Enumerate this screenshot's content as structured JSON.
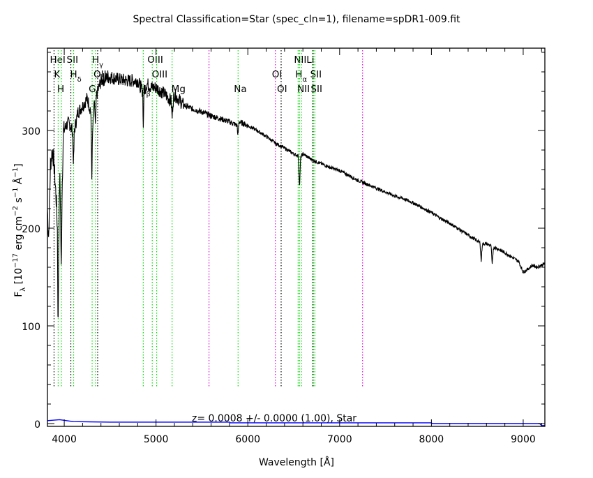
{
  "chart_data": {
    "type": "line",
    "title": "Spectral Classification=Star (spec_cln=1), filename=spDR1-009.fit",
    "xlabel": "Wavelength [Å]",
    "ylabel": {
      "main": "F",
      "sub": "λ",
      "rest": " [10",
      "e1": "−17",
      "mid": " erg cm",
      "e2": "−2",
      "mid2": " s",
      "e3": "−1",
      "end": " Å",
      "e4": "−1",
      "close": "]"
    },
    "xlim": [
      3817,
      9236
    ],
    "ylim": [
      0,
      384
    ],
    "xticks": [
      4000,
      5000,
      6000,
      7000,
      8000,
      9000
    ],
    "xtick_labels": [
      "4000",
      "5000",
      "6000",
      "7000",
      "8000",
      "9000"
    ],
    "yticks": [
      0,
      100,
      200,
      300
    ],
    "ytick_labels": [
      "0",
      "100",
      "200",
      "300"
    ],
    "annotation": "z= 0.0008 +/- 0.0000 (1.00), Star",
    "series": [
      {
        "name": "flux",
        "color": "#000000",
        "points": [
          [
            3817,
            219
          ],
          [
            3830,
            190
          ],
          [
            3850,
            265
          ],
          [
            3870,
            280
          ],
          [
            3885,
            270
          ],
          [
            3900,
            248
          ],
          [
            3915,
            226
          ],
          [
            3925,
            200
          ],
          [
            3933,
            90
          ],
          [
            3940,
            180
          ],
          [
            3950,
            255
          ],
          [
            3960,
            220
          ],
          [
            3968,
            148
          ],
          [
            3975,
            230
          ],
          [
            3990,
            298
          ],
          [
            4020,
            305
          ],
          [
            4050,
            308
          ],
          [
            4090,
            300
          ],
          [
            4101,
            265
          ],
          [
            4110,
            300
          ],
          [
            4150,
            319
          ],
          [
            4200,
            325
          ],
          [
            4250,
            333
          ],
          [
            4290,
            320
          ],
          [
            4300,
            251
          ],
          [
            4310,
            300
          ],
          [
            4330,
            330
          ],
          [
            4340,
            300
          ],
          [
            4350,
            335
          ],
          [
            4400,
            351
          ],
          [
            4500,
            355
          ],
          [
            4600,
            352
          ],
          [
            4700,
            351
          ],
          [
            4800,
            351
          ],
          [
            4855,
            340
          ],
          [
            4861,
            301
          ],
          [
            4868,
            340
          ],
          [
            4900,
            348
          ],
          [
            4950,
            344
          ],
          [
            5000,
            344
          ],
          [
            5100,
            337
          ],
          [
            5165,
            330
          ],
          [
            5175,
            312
          ],
          [
            5185,
            330
          ],
          [
            5200,
            337
          ],
          [
            5300,
            326
          ],
          [
            5400,
            322
          ],
          [
            5500,
            319
          ],
          [
            5600,
            315
          ],
          [
            5700,
            312
          ],
          [
            5800,
            309
          ],
          [
            5885,
            305
          ],
          [
            5890,
            294
          ],
          [
            5897,
            300
          ],
          [
            5905,
            309
          ],
          [
            6000,
            305
          ],
          [
            6100,
            300
          ],
          [
            6200,
            294
          ],
          [
            6300,
            287
          ],
          [
            6400,
            282
          ],
          [
            6500,
            276
          ],
          [
            6550,
            274
          ],
          [
            6563,
            241
          ],
          [
            6575,
            272
          ],
          [
            6600,
            276
          ],
          [
            6700,
            270
          ],
          [
            6800,
            266
          ],
          [
            6900,
            262
          ],
          [
            7000,
            259
          ],
          [
            7100,
            254
          ],
          [
            7200,
            249
          ],
          [
            7300,
            245
          ],
          [
            7400,
            241
          ],
          [
            7500,
            237
          ],
          [
            7600,
            233
          ],
          [
            7700,
            230
          ],
          [
            7800,
            226
          ],
          [
            7900,
            221
          ],
          [
            8000,
            216
          ],
          [
            8100,
            210
          ],
          [
            8200,
            205
          ],
          [
            8300,
            199
          ],
          [
            8400,
            193
          ],
          [
            8500,
            187
          ],
          [
            8530,
            185
          ],
          [
            8542,
            166
          ],
          [
            8555,
            184
          ],
          [
            8600,
            184
          ],
          [
            8650,
            182
          ],
          [
            8662,
            162
          ],
          [
            8675,
            180
          ],
          [
            8700,
            180
          ],
          [
            8800,
            175
          ],
          [
            8900,
            169
          ],
          [
            8950,
            166
          ],
          [
            9000,
            155
          ],
          [
            9050,
            158
          ],
          [
            9100,
            162
          ],
          [
            9150,
            160
          ],
          [
            9236,
            164
          ]
        ]
      },
      {
        "name": "error",
        "color": "#0000ff",
        "points": [
          [
            3817,
            3
          ],
          [
            3950,
            4
          ],
          [
            4100,
            2
          ],
          [
            4500,
            1.5
          ],
          [
            5800,
            1.5
          ],
          [
            5810,
            0.8
          ],
          [
            8000,
            0.8
          ],
          [
            8010,
            0
          ],
          [
            9180,
            0
          ],
          [
            9200,
            -2
          ],
          [
            9236,
            -2
          ]
        ]
      }
    ],
    "lines": [
      {
        "wave": 3889,
        "color": "#000000",
        "label": "HeI",
        "sub": ""
      },
      {
        "wave": 4072,
        "color": "#000000",
        "label": "SII",
        "sub": ""
      },
      {
        "wave": 3934,
        "color": "#00e000",
        "label": "K",
        "sub": ""
      },
      {
        "wave": 3969,
        "color": "#00e000",
        "label": "H",
        "sub": ""
      },
      {
        "wave": 4102,
        "color": "#00e000",
        "label": "H",
        "sub": "δ"
      },
      {
        "wave": 4304,
        "color": "#00e000",
        "label": "G",
        "sub": ""
      },
      {
        "wave": 4341,
        "color": "#00e000",
        "label": "H",
        "sub": "γ"
      },
      {
        "wave": 4364,
        "color": "#000000",
        "label": "OIII",
        "sub": ""
      },
      {
        "wave": 4861,
        "color": "#00e000",
        "label": "H",
        "sub": "β"
      },
      {
        "wave": 4959,
        "color": "#00e000",
        "label": "OIII",
        "sub": ""
      },
      {
        "wave": 5007,
        "color": "#00e000",
        "label": "OIII",
        "sub": ""
      },
      {
        "wave": 5175,
        "color": "#00e000",
        "label": "Mg",
        "sub": ""
      },
      {
        "wave": 5894,
        "color": "#00e000",
        "label": "Na",
        "sub": ""
      },
      {
        "wave": 6300,
        "color": "#e000e0",
        "label": "OI",
        "sub": ""
      },
      {
        "wave": 6363,
        "color": "#000000",
        "label": "OI",
        "sub": ""
      },
      {
        "wave": 6548,
        "color": "#00e000",
        "label": "NII",
        "sub": ""
      },
      {
        "wave": 6563,
        "color": "#00e000",
        "label": "H",
        "sub": "α"
      },
      {
        "wave": 6584,
        "color": "#00e000",
        "label": "NII",
        "sub": ""
      },
      {
        "wave": 6707,
        "color": "#000000",
        "label": "Li",
        "sub": ""
      },
      {
        "wave": 6717,
        "color": "#00e000",
        "label": "SII",
        "sub": ""
      },
      {
        "wave": 6731,
        "color": "#00e000",
        "label": "SII",
        "sub": ""
      },
      {
        "wave": 5577,
        "color": "#e000e0",
        "label": "",
        "sub": ""
      },
      {
        "wave": 7250,
        "color": "#e000e0",
        "label": "",
        "sub": ""
      }
    ]
  }
}
